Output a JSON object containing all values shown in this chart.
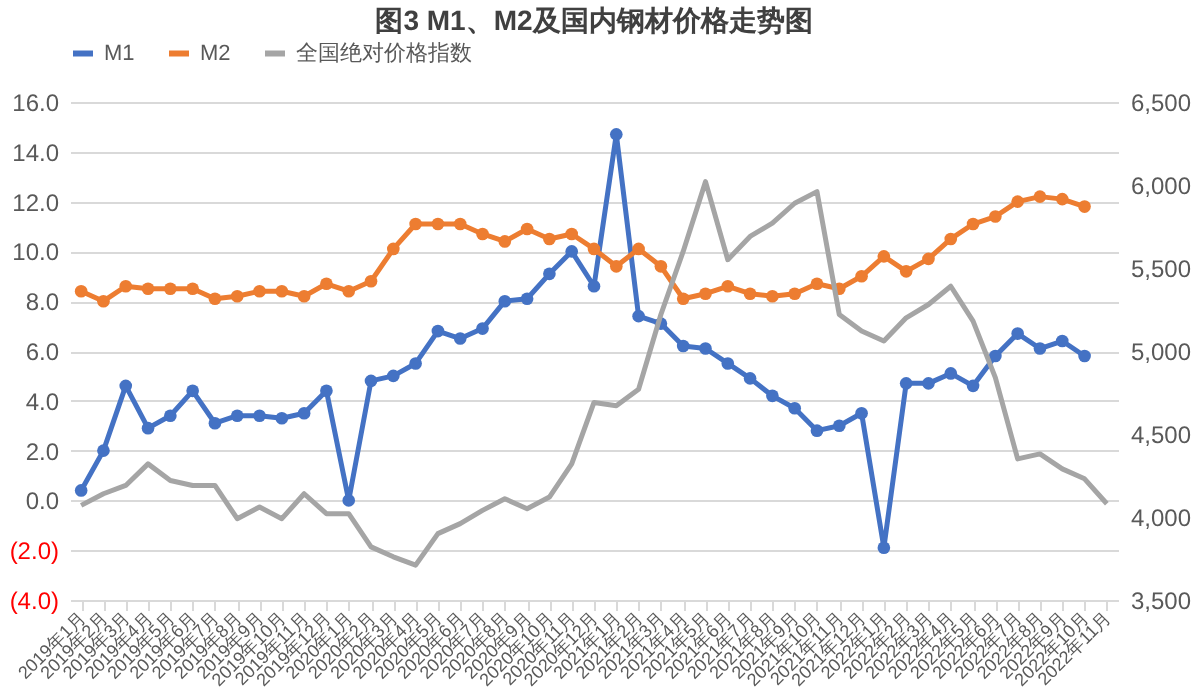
{
  "chart_data": {
    "type": "line",
    "title": "图3 M1、M2及国内钢材价格走势图",
    "categories": [
      "2019年1月",
      "2019年2月",
      "2019年3月",
      "2019年4月",
      "2019年5月",
      "2019年6月",
      "2019年7月",
      "2019年8月",
      "2019年9月",
      "2019年10月",
      "2019年11月",
      "2019年12月",
      "2020年1月",
      "2020年2月",
      "2020年3月",
      "2020年4月",
      "2020年5月",
      "2020年6月",
      "2020年7月",
      "2020年8月",
      "2020年9月",
      "2020年10月",
      "2020年11月",
      "2020年12月",
      "2021年1月",
      "2021年2月",
      "2021年3月",
      "2021年4月",
      "2021年5月",
      "2021年6月",
      "2021年7月",
      "2021年8月",
      "2021年9月",
      "2021年10月",
      "2021年11月",
      "2021年12月",
      "2022年1月",
      "2022年2月",
      "2022年3月",
      "2022年4月",
      "2022年5月",
      "2022年6月",
      "2022年7月",
      "2022年8月",
      "2022年9月",
      "2022年10月",
      "2022年11月"
    ],
    "series": [
      {
        "name": "M1",
        "color": "#4472c4",
        "marker": "circle",
        "values": [
          0.4,
          2.0,
          4.6,
          2.9,
          3.4,
          4.4,
          3.1,
          3.4,
          3.4,
          3.3,
          3.5,
          4.4,
          0.0,
          4.8,
          5.0,
          5.5,
          6.8,
          6.5,
          6.9,
          8.0,
          8.1,
          9.1,
          10.0,
          8.6,
          14.7,
          7.4,
          7.1,
          6.2,
          6.1,
          5.5,
          4.9,
          4.2,
          3.7,
          2.8,
          3.0,
          3.5,
          -1.9,
          4.7,
          4.7,
          5.1,
          4.6,
          5.8,
          6.7,
          6.1,
          6.4,
          5.8,
          null
        ]
      },
      {
        "name": "M2",
        "color": "#ed7d31",
        "marker": "circle",
        "values": [
          8.4,
          8.0,
          8.6,
          8.5,
          8.5,
          8.5,
          8.1,
          8.2,
          8.4,
          8.4,
          8.2,
          8.7,
          8.4,
          8.8,
          10.1,
          11.1,
          11.1,
          11.1,
          10.7,
          10.4,
          10.9,
          10.5,
          10.7,
          10.1,
          9.4,
          10.1,
          9.4,
          8.1,
          8.3,
          8.6,
          8.3,
          8.2,
          8.3,
          8.7,
          8.5,
          9.0,
          9.8,
          9.2,
          9.7,
          10.5,
          11.1,
          11.4,
          12.0,
          12.2,
          12.1,
          11.8,
          null
        ]
      },
      {
        "name": "全国绝对价格指数",
        "color": "#a5a5a5",
        "marker": "none",
        "axis": "y2",
        "values": [
          4070,
          4140,
          4190,
          4320,
          4220,
          4190,
          4190,
          3990,
          4060,
          3990,
          4140,
          4020,
          4020,
          3820,
          3760,
          3710,
          3900,
          3960,
          4040,
          4110,
          4050,
          4120,
          4320,
          4690,
          4670,
          4770,
          5220,
          5600,
          6020,
          5550,
          5690,
          5770,
          5890,
          5960,
          5220,
          5120,
          5060,
          5200,
          5280,
          5390,
          5180,
          4840,
          4350,
          4380,
          4290,
          4230,
          4080
        ]
      }
    ],
    "ylim": [
      -4,
      16
    ],
    "yticks": [
      {
        "value": -4,
        "label": "(4.0)"
      },
      {
        "value": -2,
        "label": "(2.0)"
      },
      {
        "value": 0,
        "label": "0.0"
      },
      {
        "value": 2,
        "label": "2.0"
      },
      {
        "value": 4,
        "label": "4.0"
      },
      {
        "value": 6,
        "label": "6.0"
      },
      {
        "value": 8,
        "label": "8.0"
      },
      {
        "value": 10,
        "label": "10.0"
      },
      {
        "value": 12,
        "label": "12.0"
      },
      {
        "value": 14,
        "label": "14.0"
      },
      {
        "value": 16,
        "label": "16.0"
      }
    ],
    "y2lim": [
      3500,
      6500
    ],
    "y2ticks": [
      {
        "value": 3500,
        "label": "3,500"
      },
      {
        "value": 4000,
        "label": "4,000"
      },
      {
        "value": 4500,
        "label": "4,500"
      },
      {
        "value": 5000,
        "label": "5,000"
      },
      {
        "value": 5500,
        "label": "5,500"
      },
      {
        "value": 6000,
        "label": "6,000"
      },
      {
        "value": 6500,
        "label": "6,500"
      }
    ],
    "grid": "y",
    "legend": "top",
    "line_style": "solid"
  }
}
